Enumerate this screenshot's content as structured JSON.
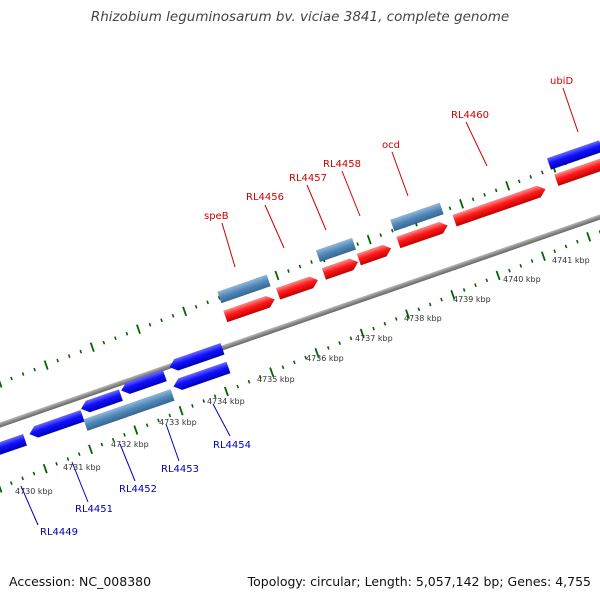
{
  "title": "Rhizobium leguminosarum bv. viciae 3841, complete genome",
  "accession": "Accession: NC_008380",
  "summary": "Topology: circular; Length: 5,057,142 bp; Genes: 4,755",
  "colors": {
    "forward_cds": "#ff0000",
    "reverse_cds": "#0000ff",
    "reverse_other": "#4682b4",
    "forward_label": "#cc0000",
    "reverse_label": "#0000bb",
    "backbone": "#888888",
    "ticks": "#006600"
  },
  "scale": {
    "unit": "kbp",
    "labels": [
      "4730 kbp",
      "4731 kbp",
      "4732 kbp",
      "4733 kbp",
      "4734 kbp",
      "4735 kbp",
      "4736 kbp",
      "4737 kbp",
      "4738 kbp",
      "4739 kbp",
      "4740 kbp",
      "4741 kbp"
    ]
  },
  "forward_features": [
    {
      "label": "speB",
      "type": "other"
    },
    {
      "label": "RL4456",
      "type": "cds"
    },
    {
      "label": "RL4457",
      "type": "other"
    },
    {
      "label": "RL4458",
      "type": "cds"
    },
    {
      "label": "ocd",
      "type": "cds"
    },
    {
      "label": "RL4460",
      "type": "cds"
    },
    {
      "label": "ubiD",
      "type": "other"
    }
  ],
  "reverse_features": [
    {
      "label": "RL4449",
      "type": "cds"
    },
    {
      "label": "RL4451",
      "type": "cds"
    },
    {
      "label": "RL4452",
      "type": "other"
    },
    {
      "label": "RL4453",
      "type": "cds"
    },
    {
      "label": "RL4454",
      "type": "cds"
    }
  ]
}
